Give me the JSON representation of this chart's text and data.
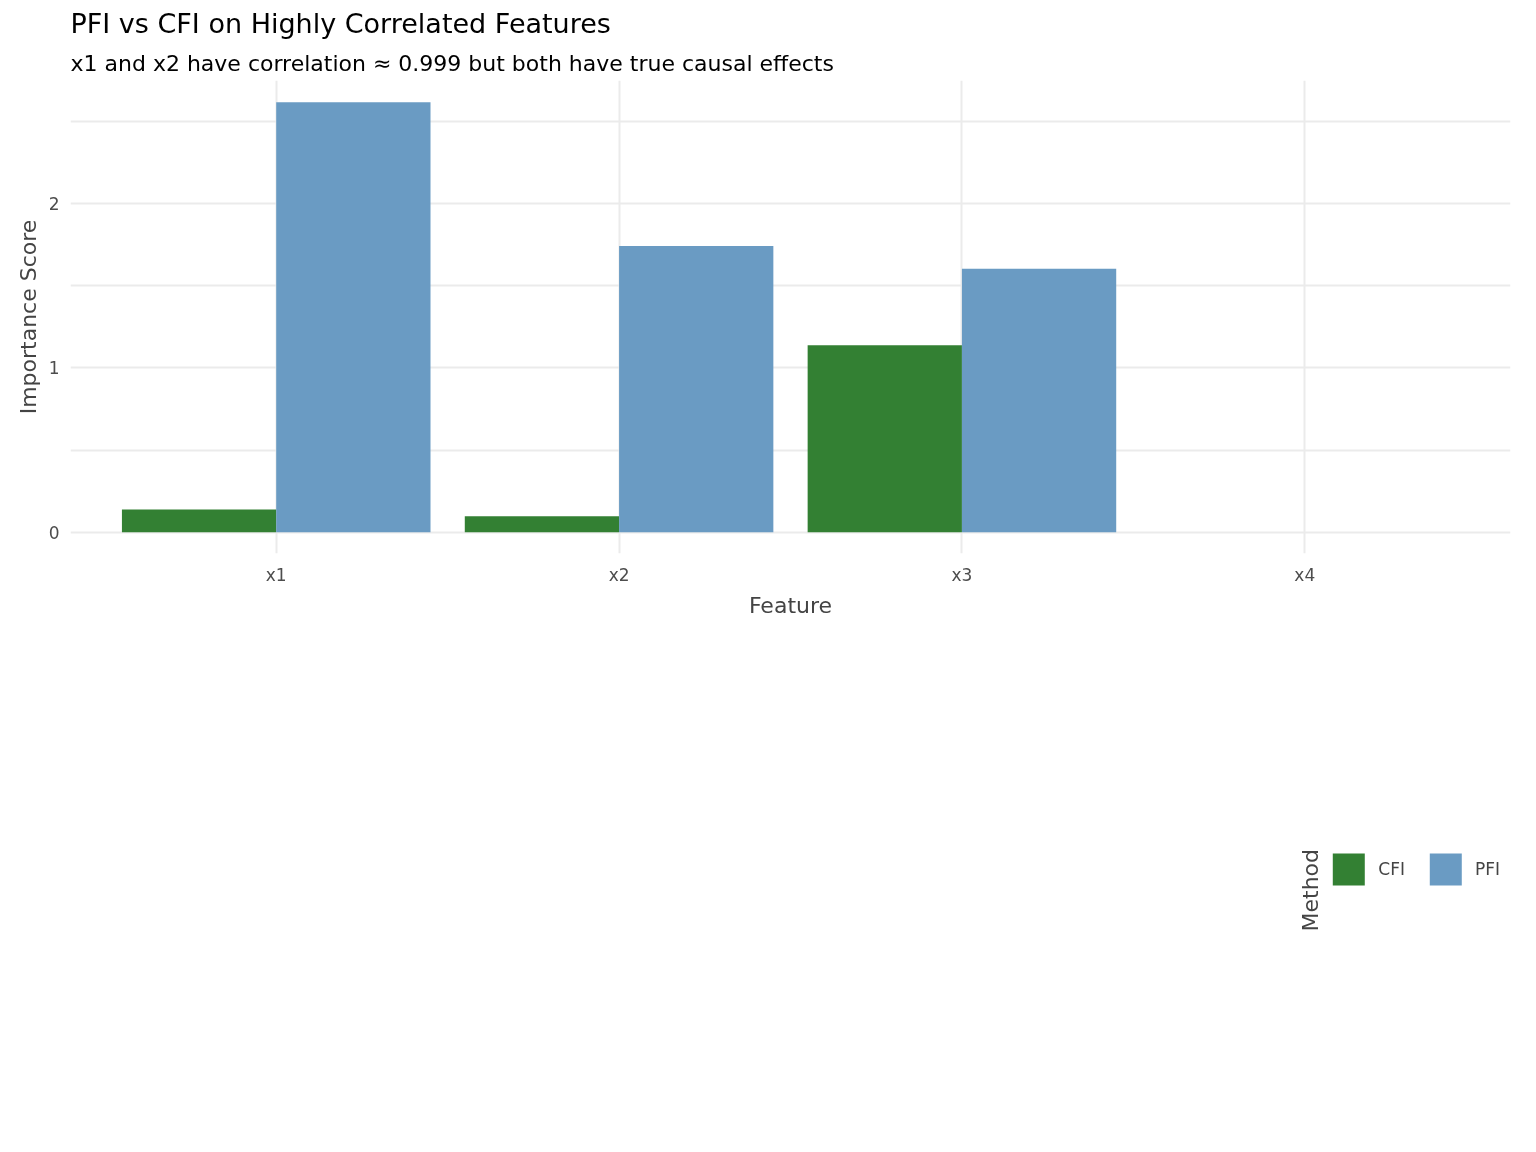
{
  "chart_data": {
    "type": "bar",
    "title": "PFI vs CFI on Highly Correlated Features",
    "subtitle": "x1 and x2 have correlation ≈ 0.999 but both have true causal effects",
    "xlabel": "Feature",
    "ylabel": "Importance Score",
    "legend_title": "Method",
    "categories": [
      "x1",
      "x2",
      "x3",
      "x4"
    ],
    "series": [
      {
        "name": "CFI",
        "color": "#338033",
        "values": [
          0.138,
          0.097,
          1.138,
          0
        ]
      },
      {
        "name": "PFI",
        "color": "#6a9bc3",
        "values": [
          2.617,
          1.742,
          1.604,
          0
        ]
      }
    ],
    "ylim": [
      -0.13,
      2.75
    ],
    "yticks": [
      0,
      {
        "value": 0.5,
        "label": null
      },
      1,
      {
        "value": 1.5,
        "label": null
      },
      2,
      {
        "value": 2.5,
        "label": null
      }
    ],
    "grid": true,
    "legend": "bottom"
  }
}
